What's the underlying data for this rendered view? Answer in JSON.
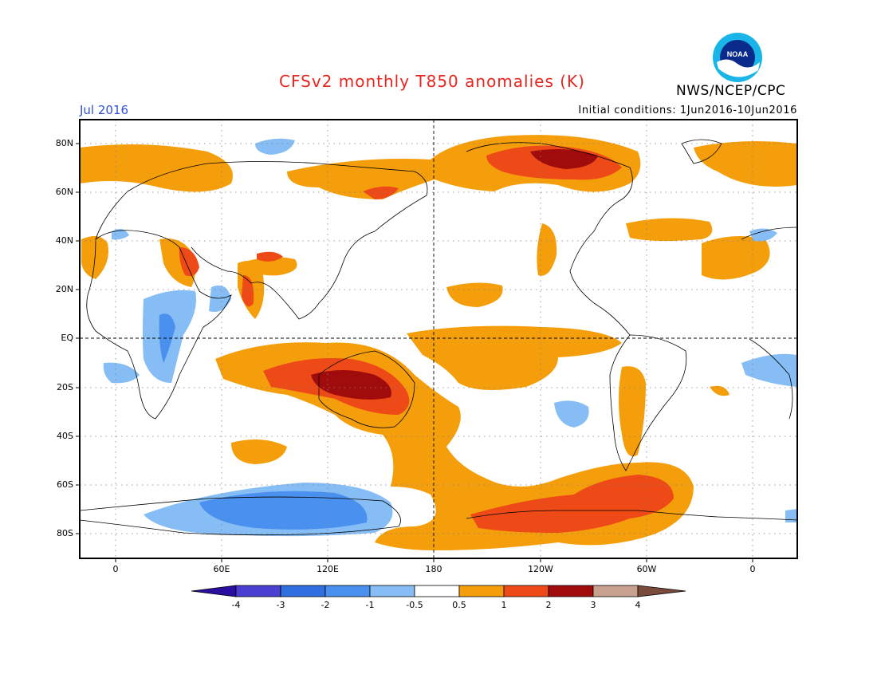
{
  "header": {
    "title": "CFSv2 monthly T850 anomalies (K)",
    "agency": "NWS/NCEP/CPC",
    "logo_text": "NOAA",
    "month": "Jul 2016",
    "initial_conditions": "Initial conditions: 1Jun2016-10Jun2016"
  },
  "map": {
    "lat_labels": [
      "80N",
      "60N",
      "40N",
      "20N",
      "EQ",
      "20S",
      "40S",
      "60S",
      "80S"
    ],
    "lon_labels": [
      "0",
      "60E",
      "120E",
      "180",
      "120W",
      "60W",
      "0"
    ],
    "projection": "cylindrical equidistant, centered on 180",
    "grid": "dotted"
  },
  "colorbar": {
    "labels": [
      "-4",
      "-3",
      "-2",
      "-1",
      "-0.5",
      "0.5",
      "1",
      "2",
      "3",
      "4"
    ],
    "colors": [
      "#2a0ea0",
      "#4a3fd0",
      "#2f6fe0",
      "#4a90ee",
      "#86bdf5",
      "#ffffff",
      "#f59e0b",
      "#ee4a18",
      "#a00c0c",
      "#c8a090",
      "#7a4a3a"
    ]
  },
  "colors": {
    "warm1": "#f59e0b",
    "warm2": "#ee4a18",
    "warm3": "#a00c0c",
    "cool1": "#86bdf5",
    "cool2": "#4a90ee"
  }
}
